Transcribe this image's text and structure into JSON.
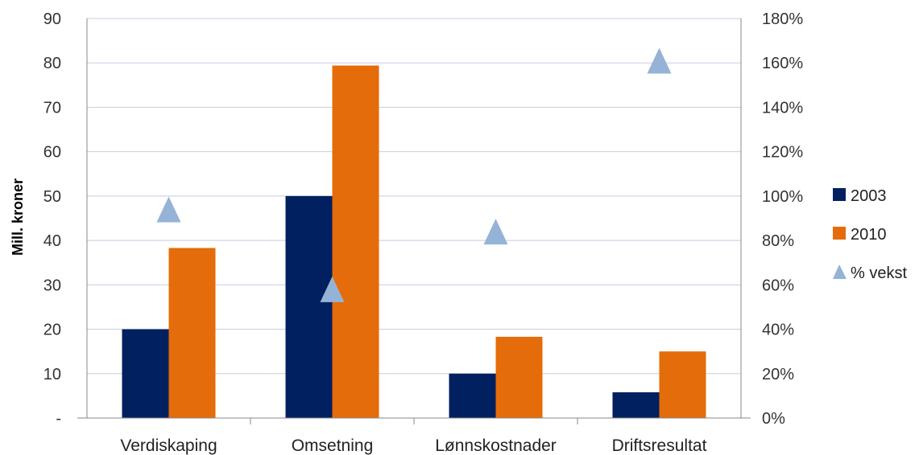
{
  "chart_data": {
    "type": "bar",
    "title": "",
    "xlabel": "",
    "ylabel": "Mill. kroner",
    "categories": [
      "Verdiskaping",
      "Omsetning",
      "Lønnskostnader",
      "Driftsresultat"
    ],
    "series": [
      {
        "name": "2003",
        "type": "bar",
        "axis": "left",
        "values": [
          20,
          50,
          10,
          5.8
        ],
        "color": "#002060"
      },
      {
        "name": "2010",
        "type": "bar",
        "axis": "left",
        "values": [
          38.3,
          79.4,
          18.3,
          15
        ],
        "color": "#e46c0a"
      },
      {
        "name": "% vekst",
        "type": "scatter",
        "axis": "right",
        "marker": "triangle",
        "values": [
          94,
          58,
          84,
          161
        ],
        "color": "#95b3d7"
      }
    ],
    "ylim": [
      0,
      90
    ],
    "yticks": [
      "-",
      "10",
      "20",
      "30",
      "40",
      "50",
      "60",
      "70",
      "80",
      "90"
    ],
    "y2lim": [
      0,
      180
    ],
    "y2ticks": [
      "0%",
      "20%",
      "40%",
      "60%",
      "80%",
      "100%",
      "120%",
      "140%",
      "160%",
      "180%"
    ],
    "grid": true,
    "legend": {
      "placement": "right",
      "entries": [
        "2003",
        "2010",
        "% vekst"
      ]
    }
  }
}
